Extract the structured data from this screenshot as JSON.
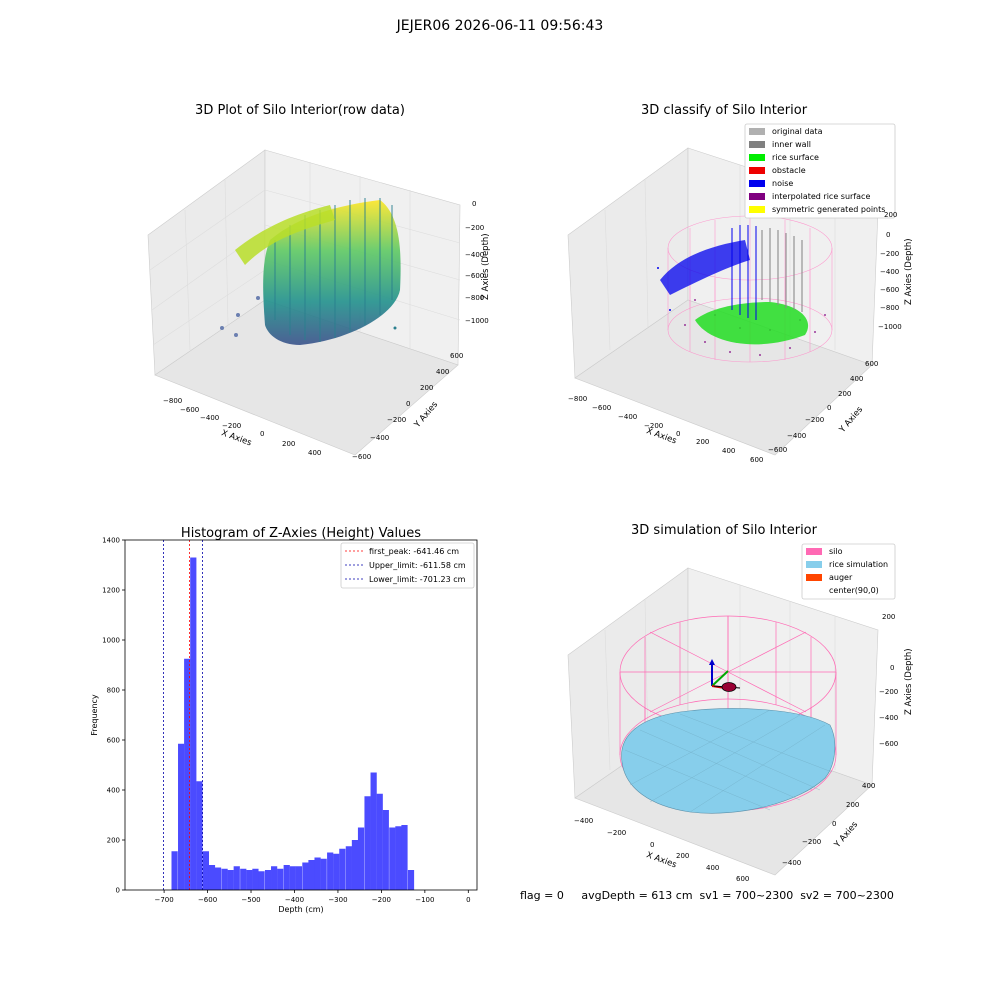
{
  "suptitle": "JEJER06 2026-06-11 09:56:43",
  "panels": {
    "raw": {
      "title": "3D Plot of Silo Interior(row data)",
      "xlabel": "X Axies",
      "ylabel": "Y Axies",
      "zlabel": "Z Axies (Depth)",
      "xticks": [
        "−800",
        "−600",
        "−400",
        "−200",
        "0",
        "200",
        "400"
      ],
      "yticks": [
        "600",
        "400",
        "200",
        "0",
        "−200",
        "−400",
        "−600"
      ],
      "zticks": [
        "0",
        "−200",
        "−400",
        "−600",
        "−800",
        "−1000"
      ]
    },
    "classify": {
      "title": "3D classify of Silo Interior",
      "xlabel": "X Axies",
      "ylabel": "Y Axies",
      "zlabel": "Z Axies (Depth)",
      "xticks": [
        "−800",
        "−600",
        "−400",
        "−200",
        "0",
        "200",
        "400",
        "600"
      ],
      "yticks": [
        "600",
        "400",
        "200",
        "0",
        "−200",
        "−400",
        "−600"
      ],
      "zticks": [
        "200",
        "0",
        "−200",
        "−400",
        "−600",
        "−800",
        "−1000"
      ],
      "legend": [
        {
          "label": "original data",
          "color": "#b0b0b0"
        },
        {
          "label": "inner wall",
          "color": "#808080"
        },
        {
          "label": "rice surface",
          "color": "#00ee00"
        },
        {
          "label": "obstacle",
          "color": "#ee0000"
        },
        {
          "label": "noise",
          "color": "#0000ee"
        },
        {
          "label": "interpolated rice surface",
          "color": "#800080"
        },
        {
          "label": "symmetric generated points",
          "color": "#ffff00"
        }
      ]
    },
    "simulation": {
      "title": "3D simulation of Silo Interior",
      "xlabel": "X Axies",
      "ylabel": "Y Axies",
      "zlabel": "Z Axies (Depth)",
      "xticks": [
        "−400",
        "−200",
        "0",
        "200",
        "400",
        "600"
      ],
      "yticks": [
        "400",
        "200",
        "0",
        "−200",
        "−400"
      ],
      "zticks": [
        "200",
        "0",
        "−200",
        "−400",
        "−600"
      ],
      "legend": [
        {
          "label": "silo",
          "color": "#ff69b4"
        },
        {
          "label": "rice simulation",
          "color": "#87ceeb"
        },
        {
          "label": "auger",
          "color": "#ff4500"
        },
        {
          "label": "center(90,0)",
          "color": ""
        }
      ]
    }
  },
  "status_line": "flag = 0     avgDepth = 613 cm  sv1 = 700~2300  sv2 = 700~2300",
  "chart_data": {
    "type": "bar",
    "title": "Histogram of Z-Axies (Height) Values",
    "xlabel": "Depth (cm)",
    "ylabel": "Frequency",
    "xlim": [
      -790,
      20
    ],
    "ylim": [
      0,
      1400
    ],
    "xticks": [
      -700,
      -600,
      -500,
      -400,
      -300,
      -200,
      -100,
      0
    ],
    "yticks": [
      0,
      200,
      400,
      600,
      800,
      1000,
      1200,
      1400
    ],
    "bin_width": 14.3,
    "bin_starts": [
      -697,
      -683,
      -668,
      -654,
      -640,
      -626,
      -611,
      -597,
      -583,
      -568,
      -554,
      -540,
      -525,
      -511,
      -497,
      -483,
      -468,
      -454,
      -440,
      -425,
      -411,
      -397,
      -382,
      -368,
      -354,
      -340,
      -325,
      -311,
      -297,
      -282,
      -268,
      -254,
      -239,
      -225,
      -211,
      -197,
      -182,
      -168,
      -154,
      -139,
      -125,
      -111,
      -96,
      -82,
      -68,
      -54,
      -39,
      -25
    ],
    "values": [
      0,
      155,
      585,
      925,
      1330,
      435,
      155,
      100,
      90,
      85,
      80,
      95,
      85,
      80,
      85,
      75,
      80,
      95,
      85,
      100,
      95,
      95,
      110,
      120,
      130,
      125,
      150,
      145,
      165,
      175,
      200,
      250,
      375,
      470,
      385,
      320,
      250,
      255,
      260,
      80,
      0,
      0,
      0,
      0,
      0,
      0,
      0,
      0
    ],
    "series_name": "",
    "bar_color": "#4b4bff",
    "lines": [
      {
        "label": "first_peak: -641.46 cm",
        "x": -641.46,
        "color": "#ff0000"
      },
      {
        "label": "Upper_limit: -611.58 cm",
        "x": -611.58,
        "color": "#0000aa"
      },
      {
        "label": "Lower_limit: -701.23 cm",
        "x": -701.23,
        "color": "#0000aa"
      }
    ],
    "legend_position": "top-right"
  }
}
